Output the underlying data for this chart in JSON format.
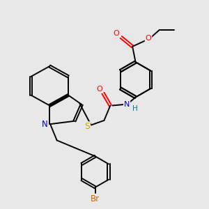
{
  "background_color": "#e8e8e8",
  "bond_color": "#000000",
  "atom_colors": {
    "O": "#ff0000",
    "N": "#0000cc",
    "S": "#ccaa00",
    "Br": "#cc6600",
    "H": "#008080",
    "C": "#000000"
  },
  "figsize": [
    3.0,
    3.0
  ],
  "dpi": 100
}
